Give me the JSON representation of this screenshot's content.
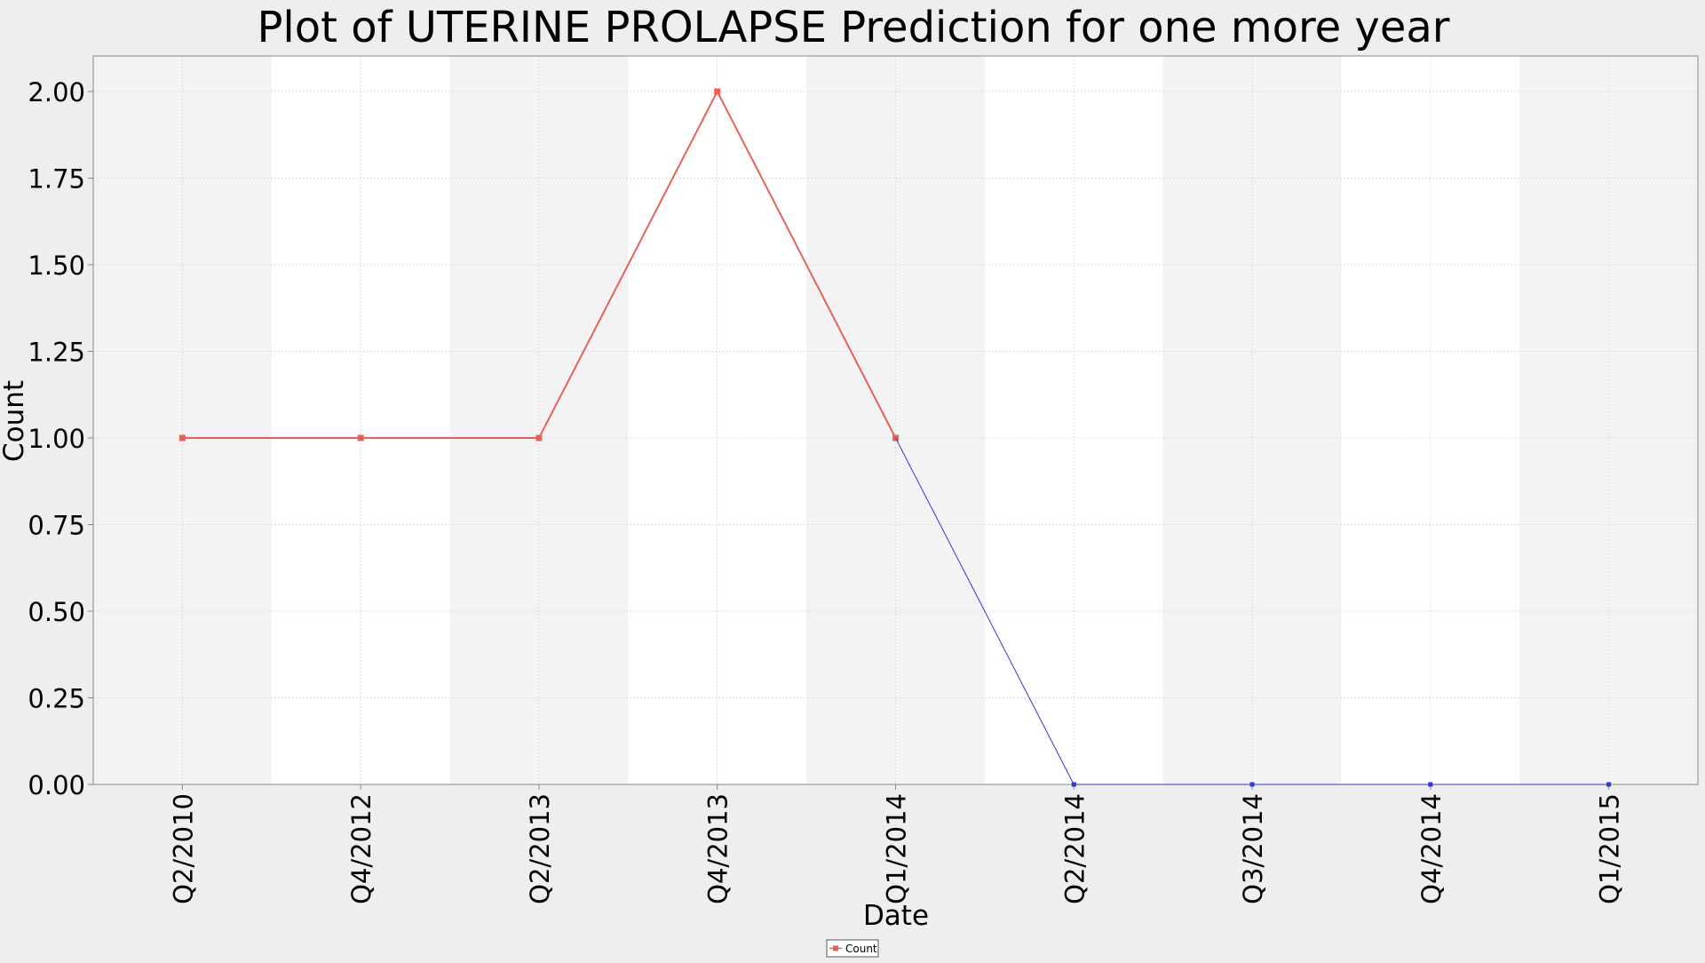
{
  "chart_data": {
    "type": "line",
    "title": "Plot of UTERINE PROLAPSE Prediction for one more year",
    "xlabel": "Date",
    "ylabel": "Count",
    "categories": [
      "Q2/2010",
      "Q4/2012",
      "Q2/2013",
      "Q4/2013",
      "Q1/2014",
      "Q2/2014",
      "Q3/2014",
      "Q4/2014",
      "Q1/2015"
    ],
    "ylim": [
      0,
      2
    ],
    "yticks": [
      "0.00",
      "0.25",
      "0.50",
      "0.75",
      "1.00",
      "1.25",
      "1.50",
      "1.75",
      "2.00"
    ],
    "grid": true,
    "legend_placement": "bottom-center",
    "series": [
      {
        "name": "Count",
        "color": "#e8605a",
        "values": [
          1,
          1,
          1,
          2,
          1,
          null,
          null,
          null,
          null
        ]
      },
      {
        "color": "#3333dd",
        "values": [
          null,
          null,
          null,
          null,
          1,
          0,
          0,
          0,
          0
        ]
      }
    ],
    "colors": {
      "page_background": "#eeeeee",
      "band_dark": "#f3f3f3",
      "band_light": "#ffffff",
      "gridline": "#dcdcdc",
      "axis": "#888888"
    }
  }
}
